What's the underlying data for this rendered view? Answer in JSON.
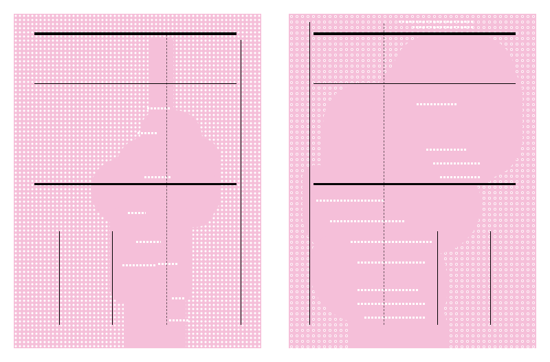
{
  "posters": [
    {
      "id": "left",
      "background": "#f5bfd9",
      "pattern": "dots"
    },
    {
      "id": "right",
      "background": "#f5bfd9",
      "pattern": "rings"
    }
  ],
  "colors": {
    "pink": "#f5bfd9",
    "white": "#ffffff",
    "rule": "#000000"
  }
}
